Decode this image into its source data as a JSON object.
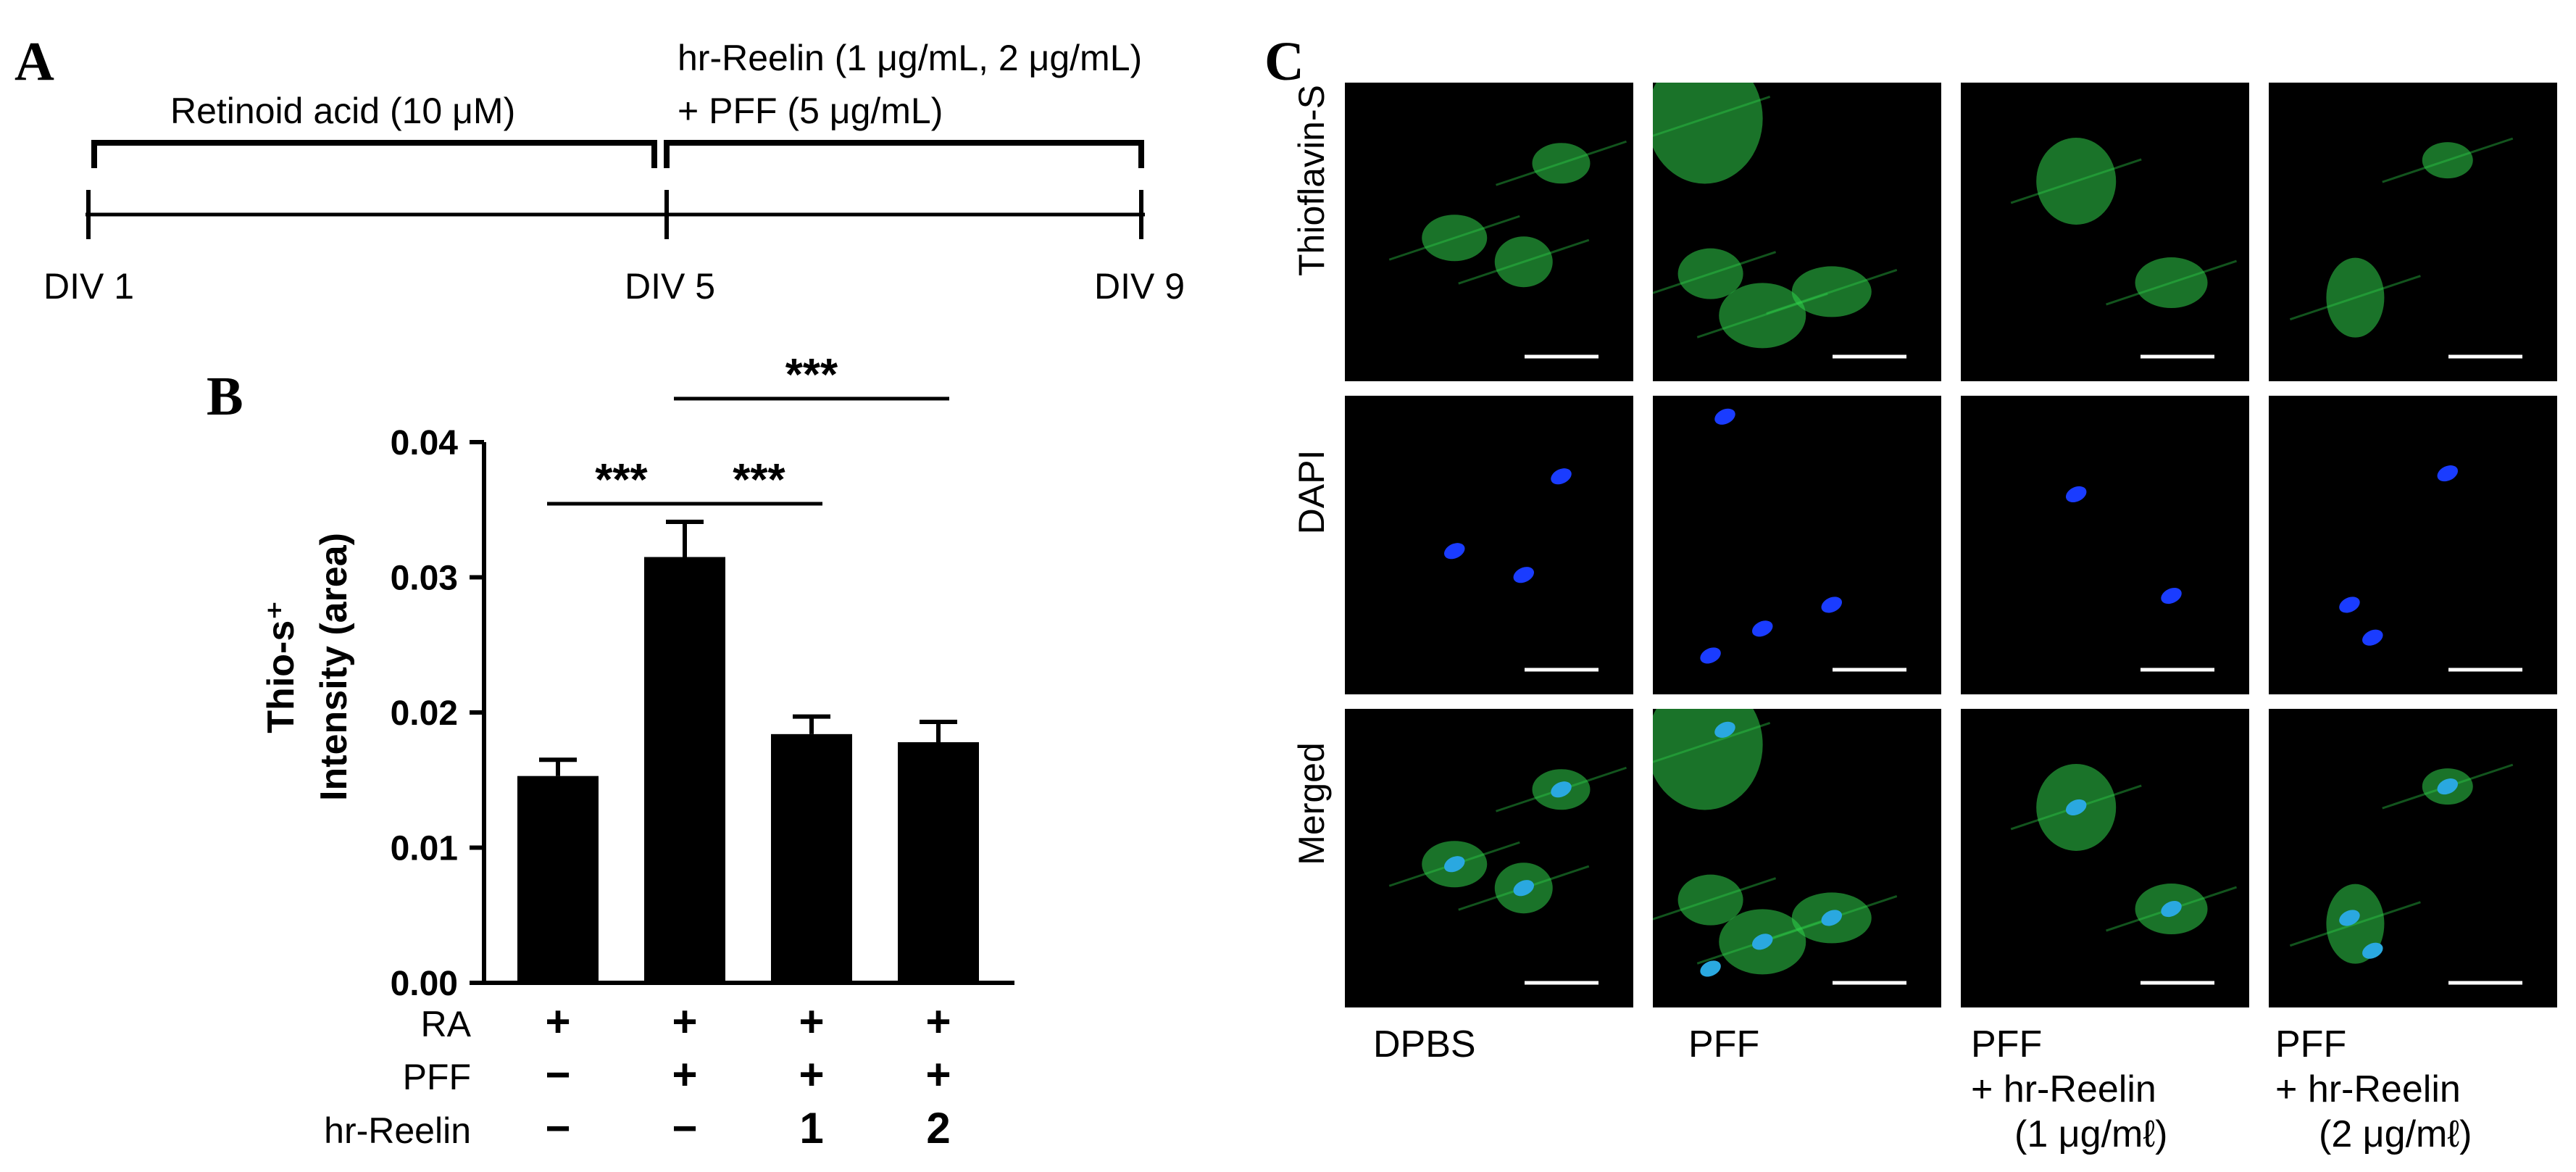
{
  "panel_a": {
    "letter": "A",
    "ra_label": "Retinoid acid  (10 μM)",
    "treat_label_line1": "hr-Reelin (1 μg/mL, 2 μg/mL)",
    "treat_label_line2": "+ PFF (5 μg/mL)",
    "ticks": [
      "DIV 1",
      "DIV 5",
      "DIV 9"
    ]
  },
  "panel_b": {
    "letter": "B",
    "row_labels": [
      "RA",
      "PFF",
      "hr-Reelin"
    ],
    "condition_marks": [
      [
        "+",
        "+",
        "+",
        "+"
      ],
      [
        "−",
        "+",
        "+",
        "+"
      ],
      [
        "−",
        "−",
        "1",
        "2"
      ]
    ],
    "significance": [
      "***",
      "***",
      "***"
    ]
  },
  "chart_data": {
    "type": "bar",
    "categories": [
      "RA+ PFF−",
      "RA+ PFF+",
      "RA+ PFF+ hr-Reelin 1",
      "RA+ PFF+ hr-Reelin 2"
    ],
    "values": [
      0.0153,
      0.0315,
      0.0184,
      0.0178
    ],
    "errors": [
      0.0012,
      0.0026,
      0.0013,
      0.0015
    ],
    "ylabel_line1": "Thio-s⁺",
    "ylabel_line2": "Intensity (area)",
    "ylim": [
      0,
      0.04
    ],
    "yticks": [
      "0.00",
      "0.01",
      "0.02",
      "0.03",
      "0.04"
    ],
    "comparisons": [
      {
        "from": 0,
        "to": 1,
        "label": "***"
      },
      {
        "from": 1,
        "to": 2,
        "label": "***"
      },
      {
        "from": 1,
        "to": 3,
        "label": "***"
      }
    ],
    "bar_color": "#000000",
    "grid": false
  },
  "panel_c": {
    "letter": "C",
    "row_labels": [
      "Thioflavin-S",
      "DAPI",
      "Merged"
    ],
    "col_labels": [
      {
        "line1": "DPBS",
        "line2": "",
        "line3": ""
      },
      {
        "line1": "PFF",
        "line2": "",
        "line3": ""
      },
      {
        "line1": "PFF",
        "line2": "+ hr-Reelin",
        "line3": "(1 μg/mℓ)"
      },
      {
        "line1": "PFF",
        "line2": "+ hr-Reelin",
        "line3": "(2 μg/mℓ)"
      }
    ],
    "colors": {
      "thioflavin": "#2fd24a",
      "dapi": "#1a3cff",
      "merged_nucleus": "#2aa8e0",
      "background": "#000000",
      "scale_bar": "#ffffff"
    }
  }
}
